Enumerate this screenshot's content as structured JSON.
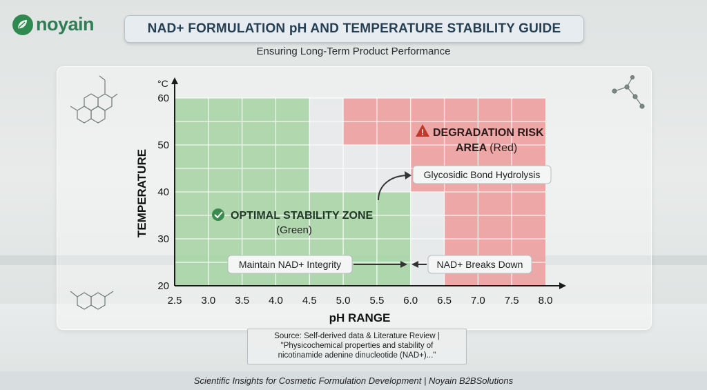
{
  "brand": {
    "name": "noyain"
  },
  "header": {
    "title": "NAD+ FORMULATION pH AND TEMPERATURE STABILITY GUIDE",
    "subtitle": "Ensuring Long-Term Product Performance"
  },
  "chart_data": {
    "type": "heatmap",
    "xlabel": "pH RANGE",
    "ylabel": "TEMPERATURE",
    "y_unit": "°C",
    "xlim": [
      2.5,
      8.0
    ],
    "ylim": [
      20,
      60
    ],
    "x_ticks": [
      "2.5",
      "3.0",
      "3.5",
      "4.0",
      "4.5",
      "5.0",
      "5.5",
      "6.0",
      "6.5",
      "7.0",
      "7.5",
      "8.0"
    ],
    "y_ticks": [
      "20",
      "30",
      "40",
      "50",
      "60"
    ],
    "zones": [
      {
        "zone": "optimal",
        "x": [
          2.5,
          4.5
        ],
        "y": [
          20,
          60
        ]
      },
      {
        "zone": "optimal",
        "x": [
          4.5,
          6.0
        ],
        "y": [
          20,
          40
        ]
      },
      {
        "zone": "neutral",
        "x": [
          4.5,
          5.0
        ],
        "y": [
          50,
          60
        ]
      },
      {
        "zone": "neutral",
        "x": [
          4.5,
          6.0
        ],
        "y": [
          40,
          50
        ]
      },
      {
        "zone": "neutral",
        "x": [
          6.0,
          6.5
        ],
        "y": [
          20,
          40
        ]
      },
      {
        "zone": "risk",
        "x": [
          5.0,
          8.0
        ],
        "y": [
          50,
          60
        ]
      },
      {
        "zone": "risk",
        "x": [
          6.0,
          8.0
        ],
        "y": [
          40,
          50
        ]
      },
      {
        "zone": "risk",
        "x": [
          6.5,
          8.0
        ],
        "y": [
          20,
          40
        ]
      }
    ],
    "colors": {
      "optimal": "#a9d4a6",
      "risk": "#ec9f9f",
      "neutral": "#e7e9ea",
      "axis": "#1a1a1a"
    },
    "annotations": {
      "optimal_title": "OPTIMAL STABILITY ZONE",
      "optimal_sub": "(Green)",
      "risk_title_1": "DEGRADATION RISK",
      "risk_title_2": "AREA",
      "risk_sub": "(Red)",
      "hydrolysis": "Glycosidic Bond Hydrolysis",
      "maintain": "Maintain NAD+ Integrity",
      "breaks": "NAD+ Breaks Down"
    }
  },
  "source": {
    "line1": "Source: Self-derived data & Literature Review |",
    "line2": "\"Physicochemical properties and stability of",
    "line3": "nicotinamide adenine dinucleotide (NAD+)...\""
  },
  "footer": {
    "text": "Scientific Insights for Cosmetic Formulation Development | Noyain B2BSolutions"
  }
}
